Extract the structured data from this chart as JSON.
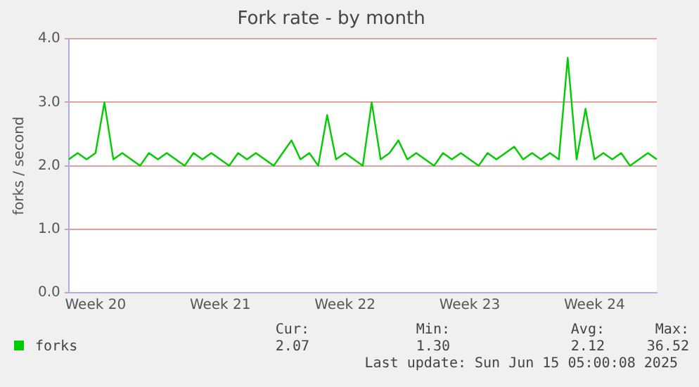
{
  "chart_data": {
    "type": "line",
    "title": "Fork rate - by month",
    "ylabel": "forks / second",
    "categories": [
      null,
      null,
      null,
      "Week 20",
      null,
      null,
      null,
      null,
      null,
      null,
      null,
      null,
      null,
      null,
      null,
      null,
      null,
      "Week 21",
      null,
      null,
      null,
      null,
      null,
      null,
      null,
      null,
      null,
      null,
      null,
      null,
      null,
      "Week 22",
      null,
      null,
      null,
      null,
      null,
      null,
      null,
      null,
      null,
      null,
      null,
      null,
      null,
      "Week 23",
      null,
      null,
      null,
      null,
      null,
      null,
      null,
      null,
      null,
      null,
      null,
      null,
      null,
      "Week 24",
      null,
      null,
      null,
      null,
      null,
      null,
      null
    ],
    "ylim": [
      0,
      4
    ],
    "yticks": [
      {
        "value": 0,
        "label": "0.0"
      },
      {
        "value": 1,
        "label": "1.0"
      },
      {
        "value": 2,
        "label": "2.0"
      },
      {
        "value": 3,
        "label": "3.0"
      },
      {
        "value": 4,
        "label": "4.0"
      }
    ],
    "grid": "y",
    "legend": "bottom",
    "marker": "none",
    "line_style": "solid",
    "series": [
      {
        "name": "forks",
        "color": "#00cc00",
        "values": [
          2.1,
          2.2,
          2.1,
          2.2,
          3.0,
          2.1,
          2.2,
          2.1,
          2.0,
          2.2,
          2.1,
          2.2,
          2.1,
          2.0,
          2.2,
          2.1,
          2.2,
          2.1,
          2.0,
          2.2,
          2.1,
          2.2,
          2.1,
          2.0,
          2.2,
          2.4,
          2.1,
          2.2,
          2.0,
          2.8,
          2.1,
          2.2,
          2.1,
          2.0,
          3.0,
          2.1,
          2.2,
          2.4,
          2.1,
          2.2,
          2.1,
          2.0,
          2.2,
          2.1,
          2.2,
          2.1,
          2.0,
          2.2,
          2.1,
          2.2,
          2.3,
          2.1,
          2.2,
          2.1,
          2.2,
          2.1,
          3.7,
          2.1,
          2.9,
          2.1,
          2.2,
          2.1,
          2.2,
          2.0,
          2.1,
          2.2,
          2.1
        ]
      }
    ],
    "annotations": [
      "Cur:",
      "Min:",
      "Avg:",
      "Max:",
      "2.07",
      "1.30",
      "2.12",
      "36.52",
      "Last update: Sun Jun 15 05:00:08 2025"
    ]
  }
}
